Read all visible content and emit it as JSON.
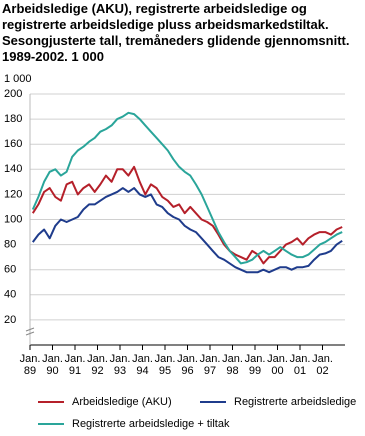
{
  "chart_data": {
    "type": "line",
    "title": "Arbeidsledige (AKU), registrerte arbeidsledige og registrerte arbeidsledige pluss arbeidsmarkedstiltak. Sesongjusterte tall, tremåneders glidende gjennomsnitt. 1989-2002. 1 000",
    "y_unit": "1 000",
    "categories": [
      "Jan. 89",
      null,
      null,
      null,
      "Jan. 90",
      null,
      null,
      null,
      "Jan. 91",
      null,
      null,
      null,
      "Jan. 92",
      null,
      null,
      null,
      "Jan. 93",
      null,
      null,
      null,
      "Jan. 94",
      null,
      null,
      null,
      "Jan. 95",
      null,
      null,
      null,
      "Jan. 96",
      null,
      null,
      null,
      "Jan. 97",
      null,
      null,
      null,
      "Jan. 98",
      null,
      null,
      null,
      "Jan. 99",
      null,
      null,
      null,
      "Jan. 00",
      null,
      null,
      null,
      "Jan. 01",
      null,
      null,
      null,
      "Jan. 02",
      null,
      null,
      null
    ],
    "series": [
      {
        "name": "Arbeidsledige (AKU)",
        "color": "#b5202a",
        "values": [
          105,
          112,
          122,
          125,
          118,
          115,
          128,
          130,
          120,
          125,
          128,
          122,
          128,
          135,
          130,
          140,
          140,
          135,
          142,
          130,
          120,
          128,
          125,
          118,
          115,
          110,
          112,
          105,
          110,
          105,
          100,
          98,
          95,
          88,
          80,
          75,
          72,
          70,
          68,
          75,
          72,
          65,
          70,
          70,
          75,
          80,
          82,
          85,
          80,
          85,
          88,
          90,
          90,
          88,
          92,
          94
        ]
      },
      {
        "name": "Registrerte arbeidsledige",
        "color": "#1f3c8c",
        "values": [
          82,
          88,
          92,
          85,
          95,
          100,
          98,
          100,
          102,
          108,
          112,
          112,
          115,
          118,
          120,
          122,
          125,
          122,
          125,
          120,
          118,
          120,
          112,
          110,
          105,
          102,
          100,
          95,
          92,
          90,
          85,
          80,
          75,
          70,
          68,
          65,
          62,
          60,
          58,
          58,
          58,
          60,
          58,
          60,
          62,
          62,
          60,
          62,
          62,
          63,
          68,
          72,
          73,
          75,
          80,
          83
        ]
      },
      {
        "name": "Registrerte arbeidsledige + tiltak",
        "color": "#2aa59a",
        "values": [
          108,
          118,
          130,
          138,
          140,
          135,
          138,
          150,
          155,
          158,
          162,
          165,
          170,
          172,
          175,
          180,
          182,
          185,
          184,
          180,
          175,
          170,
          165,
          160,
          155,
          148,
          142,
          138,
          135,
          128,
          120,
          110,
          100,
          90,
          82,
          75,
          70,
          65,
          66,
          68,
          72,
          75,
          72,
          75,
          78,
          75,
          72,
          70,
          70,
          72,
          76,
          80,
          82,
          85,
          88,
          90
        ]
      }
    ],
    "ylim": [
      0,
      200
    ],
    "yticks": [
      20,
      40,
      60,
      80,
      100,
      120,
      140,
      160,
      180,
      200
    ],
    "grid": true
  }
}
